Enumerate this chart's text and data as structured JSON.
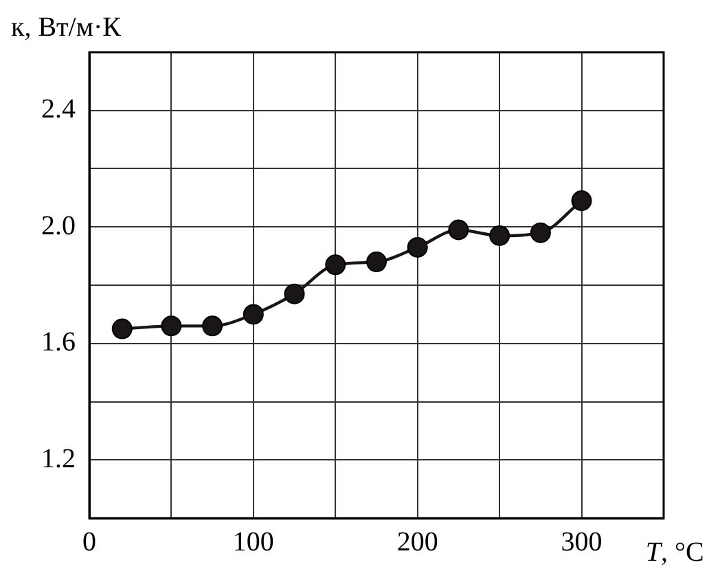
{
  "chart_data": {
    "type": "line",
    "xlabel": "T, °C",
    "ylabel": "к, Вт/м·К",
    "x": [
      20,
      50,
      75,
      100,
      125,
      150,
      175,
      200,
      225,
      250,
      275,
      300
    ],
    "series": [
      {
        "color": "#1a1616",
        "values": [
          1.65,
          1.66,
          1.66,
          1.7,
          1.77,
          1.87,
          1.88,
          1.93,
          1.99,
          1.97,
          1.98,
          2.09
        ]
      }
    ],
    "xlim": [
      0,
      350
    ],
    "xticks": [
      0,
      {
        "value": 50,
        "label": null
      },
      100,
      {
        "value": 150,
        "label": null
      },
      200,
      {
        "value": 250,
        "label": null
      },
      300,
      {
        "value": 350,
        "label": null
      }
    ],
    "ylim": [
      1.0,
      2.6
    ],
    "yticks": [
      {
        "value": 1.0,
        "label": null
      },
      1.2,
      {
        "value": 1.4,
        "label": null
      },
      1.6,
      {
        "value": 1.8,
        "label": null
      },
      {
        "value": 2.0,
        "label": "2.0"
      },
      {
        "value": 2.2,
        "label": null
      },
      2.4,
      {
        "value": 2.6,
        "label": null
      }
    ],
    "grid": true,
    "legend": false,
    "marker": "circle",
    "line_style": "solid"
  }
}
